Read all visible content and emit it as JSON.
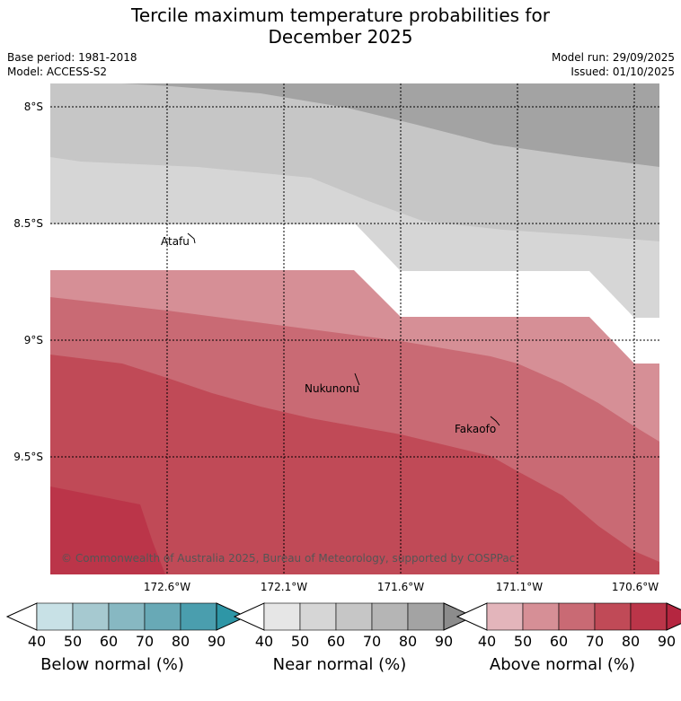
{
  "title": {
    "line1": "Tercile maximum temperature probabilities for",
    "line2": "December 2025"
  },
  "meta": {
    "base_period": "Base period: 1981-2018",
    "model": "Model: ACCESS-S2",
    "model_run": "Model run: 29/09/2025",
    "issued": "Issued: 01/10/2025"
  },
  "map": {
    "lat_ticks": [
      "8°S",
      "8.5°S",
      "9°S",
      "9.5°S"
    ],
    "lon_ticks": [
      "172.6°W",
      "172.1°W",
      "171.6°W",
      "171.1°W",
      "170.6°W"
    ],
    "places": [
      "Atafu",
      "Nukunonu",
      "Fakaofo"
    ],
    "copyright": "© Commonwealth of Australia 2025, Bureau of Meteorology, supported by COSPPac",
    "colors": {
      "near_50": "#d6d6d6",
      "near_60": "#c6c6c6",
      "near_80": "#a3a3a3",
      "above_50": "#d68f96",
      "above_60": "#c96a74",
      "above_70": "#c04a57",
      "above_80": "#bb3549"
    }
  },
  "colorbars": [
    {
      "name": "Below normal (%)",
      "ticks": [
        "40",
        "50",
        "60",
        "70",
        "80",
        "90"
      ],
      "colors": [
        "#ffffff",
        "#c8e1e6",
        "#a6c9d0",
        "#87b8c2",
        "#68a9b6",
        "#4a9eae",
        "#2e96a6"
      ]
    },
    {
      "name": "Near normal (%)",
      "ticks": [
        "40",
        "50",
        "60",
        "70",
        "80",
        "90"
      ],
      "colors": [
        "#ffffff",
        "#e6e6e6",
        "#d6d6d6",
        "#c6c6c6",
        "#b5b5b5",
        "#a3a3a3",
        "#8c8c8c"
      ]
    },
    {
      "name": "Above normal (%)",
      "ticks": [
        "40",
        "50",
        "60",
        "70",
        "80",
        "90"
      ],
      "colors": [
        "#ffffff",
        "#e3b5bb",
        "#d68f96",
        "#c96a74",
        "#c04a57",
        "#bb3549",
        "#b52640"
      ]
    }
  ]
}
